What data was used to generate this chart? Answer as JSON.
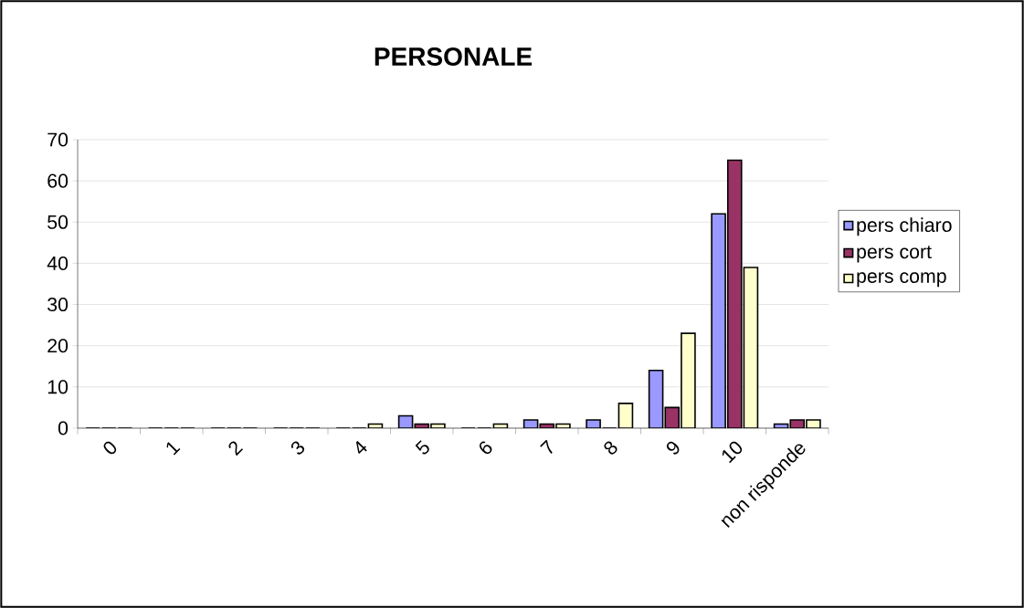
{
  "chart_data": {
    "type": "bar",
    "title": "PERSONALE",
    "categories": [
      "0",
      "1",
      "2",
      "3",
      "4",
      "5",
      "6",
      "7",
      "8",
      "9",
      "10",
      "non risponde"
    ],
    "series": [
      {
        "name": "pers chiaro",
        "color": "#9999ff",
        "values": [
          0,
          0,
          0,
          0,
          0,
          3,
          0,
          2,
          2,
          14,
          52,
          1
        ]
      },
      {
        "name": "pers cort",
        "color": "#993366",
        "values": [
          0,
          0,
          0,
          0,
          0,
          1,
          0,
          1,
          0,
          5,
          65,
          2
        ]
      },
      {
        "name": "pers comp",
        "color": "#ffffcc",
        "values": [
          0,
          0,
          0,
          0,
          1,
          1,
          1,
          1,
          6,
          23,
          39,
          2
        ]
      }
    ],
    "ylim": [
      0,
      70
    ],
    "yticks": [
      0,
      10,
      20,
      30,
      40,
      50,
      60,
      70
    ],
    "grid": "y",
    "legend": "right"
  }
}
